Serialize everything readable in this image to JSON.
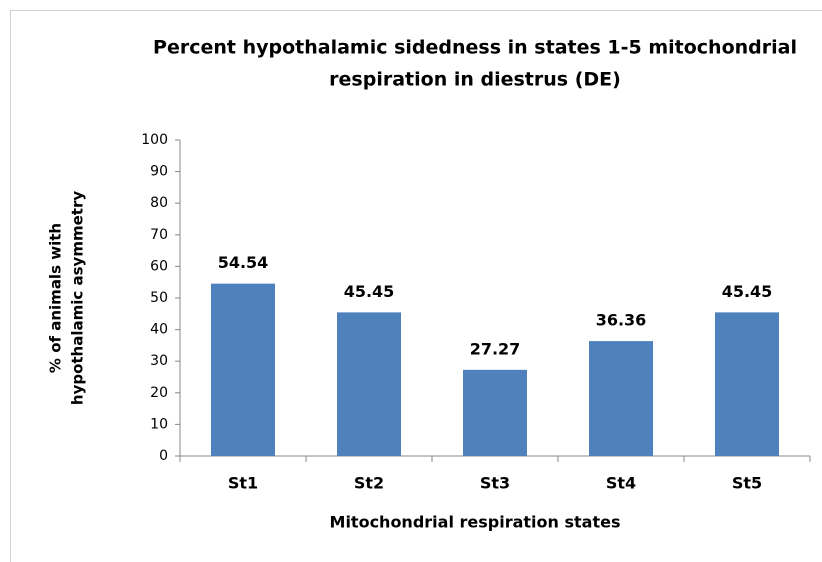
{
  "chart_data": {
    "type": "bar",
    "title": [
      "Percent hypothalamic sidedness in states 1-5 mitochondrial",
      "respiration in diestrus (DE)"
    ],
    "xlabel": "Mitochondrial respiration states",
    "ylabel": [
      "% of animals with",
      "hypothalamic asymmetry"
    ],
    "categories": [
      "St1",
      "St2",
      "St3",
      "St4",
      "St5"
    ],
    "values": [
      54.54,
      45.45,
      27.27,
      36.36,
      45.45
    ],
    "color": "#4f81bd",
    "ylim": [
      0,
      100
    ],
    "yticks": [
      0,
      10,
      20,
      30,
      40,
      50,
      60,
      70,
      80,
      90,
      100
    ],
    "grid": false
  }
}
